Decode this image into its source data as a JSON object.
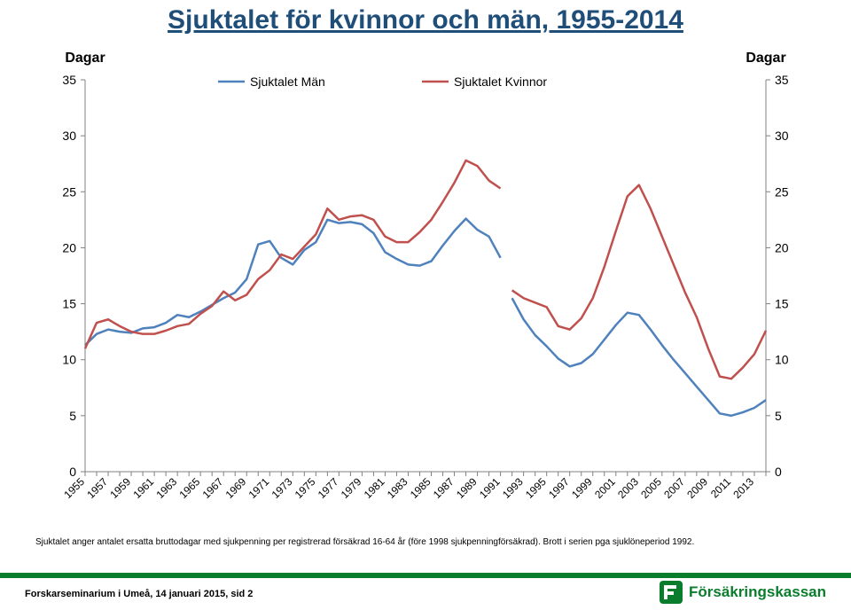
{
  "title": "Sjuktalet för kvinnor och män, 1955-2014",
  "caption": "Sjuktalet anger antalet ersatta bruttodagar med sjukpenning per registrerad försäkrad 16-64 år (före 1998 sjukpenningförsäkrad). Brott i serien pga sjuklöneperiod 1992.",
  "footer": "Forskarseminarium i Umeå, 14 januari 2015, sid 2",
  "logo_text": "Försäkringskassan",
  "chart": {
    "type": "line",
    "left_axis_title": "Dagar",
    "right_axis_title": "Dagar",
    "ylim": [
      0,
      35
    ],
    "ytick_step": 5,
    "xlim": [
      1955,
      2014
    ],
    "xtick_step": 2,
    "xtick_start": 1955,
    "xtick_end": 2013,
    "colors": {
      "men": "#4f81bd",
      "women": "#c0504d",
      "axis": "#808080",
      "background": "#ffffff",
      "title_color": "#1f4e79",
      "bar_color": "#0a7d2c"
    },
    "line_width": 2.5,
    "legend": {
      "items": [
        {
          "label": "Sjuktalet Män",
          "color": "#4f81bd"
        },
        {
          "label": "Sjuktalet Kvinnor",
          "color": "#c0504d"
        }
      ],
      "position": "top-inside"
    },
    "axis_font_size": 14,
    "title_font_size": 30,
    "break_between": [
      1991,
      1992
    ],
    "series": {
      "men": {
        "label": "Sjuktalet Män",
        "color": "#4f81bd",
        "data": [
          [
            1955,
            11.3
          ],
          [
            1956,
            12.3
          ],
          [
            1957,
            12.7
          ],
          [
            1958,
            12.5
          ],
          [
            1959,
            12.4
          ],
          [
            1960,
            12.8
          ],
          [
            1961,
            12.9
          ],
          [
            1962,
            13.3
          ],
          [
            1963,
            14.0
          ],
          [
            1964,
            13.8
          ],
          [
            1965,
            14.3
          ],
          [
            1966,
            14.9
          ],
          [
            1967,
            15.5
          ],
          [
            1968,
            16.0
          ],
          [
            1969,
            17.2
          ],
          [
            1970,
            20.3
          ],
          [
            1971,
            20.6
          ],
          [
            1972,
            19.1
          ],
          [
            1973,
            18.5
          ],
          [
            1974,
            19.8
          ],
          [
            1975,
            20.5
          ],
          [
            1976,
            22.5
          ],
          [
            1977,
            22.2
          ],
          [
            1978,
            22.3
          ],
          [
            1979,
            22.1
          ],
          [
            1980,
            21.3
          ],
          [
            1981,
            19.6
          ],
          [
            1982,
            19.0
          ],
          [
            1983,
            18.5
          ],
          [
            1984,
            18.4
          ],
          [
            1985,
            18.8
          ],
          [
            1986,
            20.2
          ],
          [
            1987,
            21.5
          ],
          [
            1988,
            22.6
          ],
          [
            1989,
            21.6
          ],
          [
            1990,
            21.0
          ],
          [
            1991,
            19.1
          ],
          [
            1992,
            15.5
          ],
          [
            1993,
            13.6
          ],
          [
            1994,
            12.2
          ],
          [
            1995,
            11.2
          ],
          [
            1996,
            10.1
          ],
          [
            1997,
            9.4
          ],
          [
            1998,
            9.7
          ],
          [
            1999,
            10.5
          ],
          [
            2000,
            11.8
          ],
          [
            2001,
            13.1
          ],
          [
            2002,
            14.2
          ],
          [
            2003,
            14.0
          ],
          [
            2004,
            12.7
          ],
          [
            2005,
            11.3
          ],
          [
            2006,
            10.0
          ],
          [
            2007,
            8.8
          ],
          [
            2008,
            7.6
          ],
          [
            2009,
            6.4
          ],
          [
            2010,
            5.2
          ],
          [
            2011,
            5.0
          ],
          [
            2012,
            5.3
          ],
          [
            2013,
            5.7
          ],
          [
            2014,
            6.4
          ]
        ]
      },
      "women": {
        "label": "Sjuktalet Kvinnor",
        "color": "#c0504d",
        "data": [
          [
            1955,
            11.0
          ],
          [
            1956,
            13.3
          ],
          [
            1957,
            13.6
          ],
          [
            1958,
            13.0
          ],
          [
            1959,
            12.5
          ],
          [
            1960,
            12.3
          ],
          [
            1961,
            12.3
          ],
          [
            1962,
            12.6
          ],
          [
            1963,
            13.0
          ],
          [
            1964,
            13.2
          ],
          [
            1965,
            14.1
          ],
          [
            1966,
            14.8
          ],
          [
            1967,
            16.1
          ],
          [
            1968,
            15.3
          ],
          [
            1969,
            15.8
          ],
          [
            1970,
            17.2
          ],
          [
            1971,
            18.0
          ],
          [
            1972,
            19.4
          ],
          [
            1973,
            19.0
          ],
          [
            1974,
            20.1
          ],
          [
            1975,
            21.2
          ],
          [
            1976,
            23.5
          ],
          [
            1977,
            22.5
          ],
          [
            1978,
            22.8
          ],
          [
            1979,
            22.9
          ],
          [
            1980,
            22.5
          ],
          [
            1981,
            21.0
          ],
          [
            1982,
            20.5
          ],
          [
            1983,
            20.5
          ],
          [
            1984,
            21.4
          ],
          [
            1985,
            22.5
          ],
          [
            1986,
            24.1
          ],
          [
            1987,
            25.8
          ],
          [
            1988,
            27.8
          ],
          [
            1989,
            27.3
          ],
          [
            1990,
            26.0
          ],
          [
            1991,
            25.3
          ],
          [
            1992,
            16.2
          ],
          [
            1993,
            15.5
          ],
          [
            1994,
            15.1
          ],
          [
            1995,
            14.7
          ],
          [
            1996,
            13.0
          ],
          [
            1997,
            12.7
          ],
          [
            1998,
            13.7
          ],
          [
            1999,
            15.5
          ],
          [
            2000,
            18.3
          ],
          [
            2001,
            21.5
          ],
          [
            2002,
            24.6
          ],
          [
            2003,
            25.6
          ],
          [
            2004,
            23.5
          ],
          [
            2005,
            21.0
          ],
          [
            2006,
            18.5
          ],
          [
            2007,
            16.0
          ],
          [
            2008,
            13.8
          ],
          [
            2009,
            11.0
          ],
          [
            2010,
            8.5
          ],
          [
            2011,
            8.3
          ],
          [
            2012,
            9.3
          ],
          [
            2013,
            10.5
          ],
          [
            2014,
            12.6
          ]
        ]
      }
    }
  }
}
